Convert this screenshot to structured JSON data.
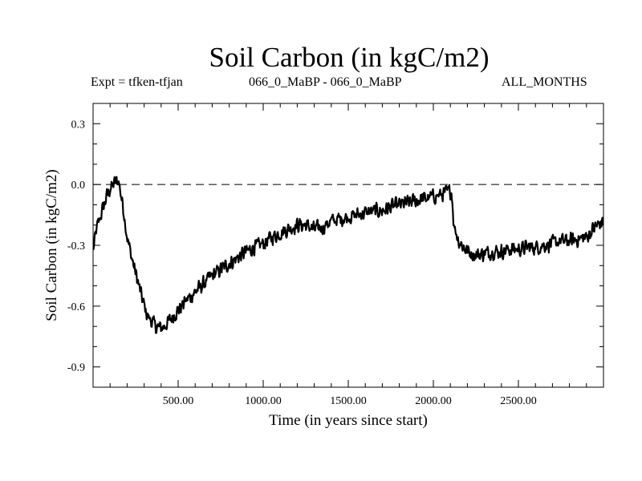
{
  "title": "Soil Carbon (in kgC/m2)",
  "subtitle_left": "Expt = tfken-tfjan",
  "subtitle_center": "066_0_MaBP - 066_0_MaBP",
  "subtitle_right": "ALL_MONTHS",
  "chart_data": {
    "type": "line",
    "title": "Soil Carbon (in kgC/m2)",
    "xlabel": "Time (in years since start)",
    "ylabel": "Soil Carbon (in kgC/m2)",
    "xlim": [
      0,
      3000
    ],
    "ylim": [
      -1.0,
      0.4
    ],
    "x_ticks": [
      500,
      1000,
      1500,
      2000,
      2500
    ],
    "x_tick_labels": [
      "500.00",
      "1000.00",
      "1500.00",
      "2000.00",
      "2500.00"
    ],
    "y_ticks": [
      0.3,
      0.0,
      -0.3,
      -0.6,
      -0.9
    ],
    "y_tick_labels": [
      "0.3",
      "0.0",
      "-0.3",
      "-0.6",
      "-0.9"
    ],
    "reference_line": 0.0,
    "grid": false,
    "series": [
      {
        "x": [
          0,
          20,
          50,
          80,
          100,
          130,
          150,
          160,
          180,
          200,
          230,
          260,
          290,
          320,
          350,
          370,
          400,
          430,
          460,
          500,
          550,
          600,
          650,
          700,
          750,
          800,
          850,
          900,
          950,
          1000,
          1050,
          1100,
          1150,
          1200,
          1250,
          1300,
          1350,
          1400,
          1450,
          1500,
          1550,
          1600,
          1650,
          1700,
          1750,
          1800,
          1850,
          1900,
          1950,
          2000,
          2050,
          2100,
          2110,
          2120,
          2150,
          2200,
          2250,
          2300,
          2350,
          2400,
          2450,
          2500,
          2550,
          2600,
          2650,
          2700,
          2750,
          2800,
          2850,
          2900,
          2950,
          3000
        ],
        "y": [
          -0.33,
          -0.22,
          -0.14,
          -0.06,
          -0.02,
          0.01,
          0.02,
          -0.03,
          -0.13,
          -0.26,
          -0.37,
          -0.47,
          -0.57,
          -0.65,
          -0.68,
          -0.7,
          -0.71,
          -0.69,
          -0.66,
          -0.62,
          -0.57,
          -0.53,
          -0.49,
          -0.45,
          -0.42,
          -0.39,
          -0.36,
          -0.33,
          -0.31,
          -0.29,
          -0.26,
          -0.24,
          -0.22,
          -0.2,
          -0.2,
          -0.22,
          -0.21,
          -0.18,
          -0.17,
          -0.16,
          -0.15,
          -0.14,
          -0.13,
          -0.13,
          -0.11,
          -0.1,
          -0.09,
          -0.08,
          -0.07,
          -0.06,
          -0.05,
          -0.03,
          -0.05,
          -0.2,
          -0.28,
          -0.33,
          -0.35,
          -0.34,
          -0.33,
          -0.33,
          -0.32,
          -0.32,
          -0.31,
          -0.31,
          -0.3,
          -0.29,
          -0.28,
          -0.28,
          -0.27,
          -0.26,
          -0.21,
          -0.18
        ]
      }
    ]
  }
}
